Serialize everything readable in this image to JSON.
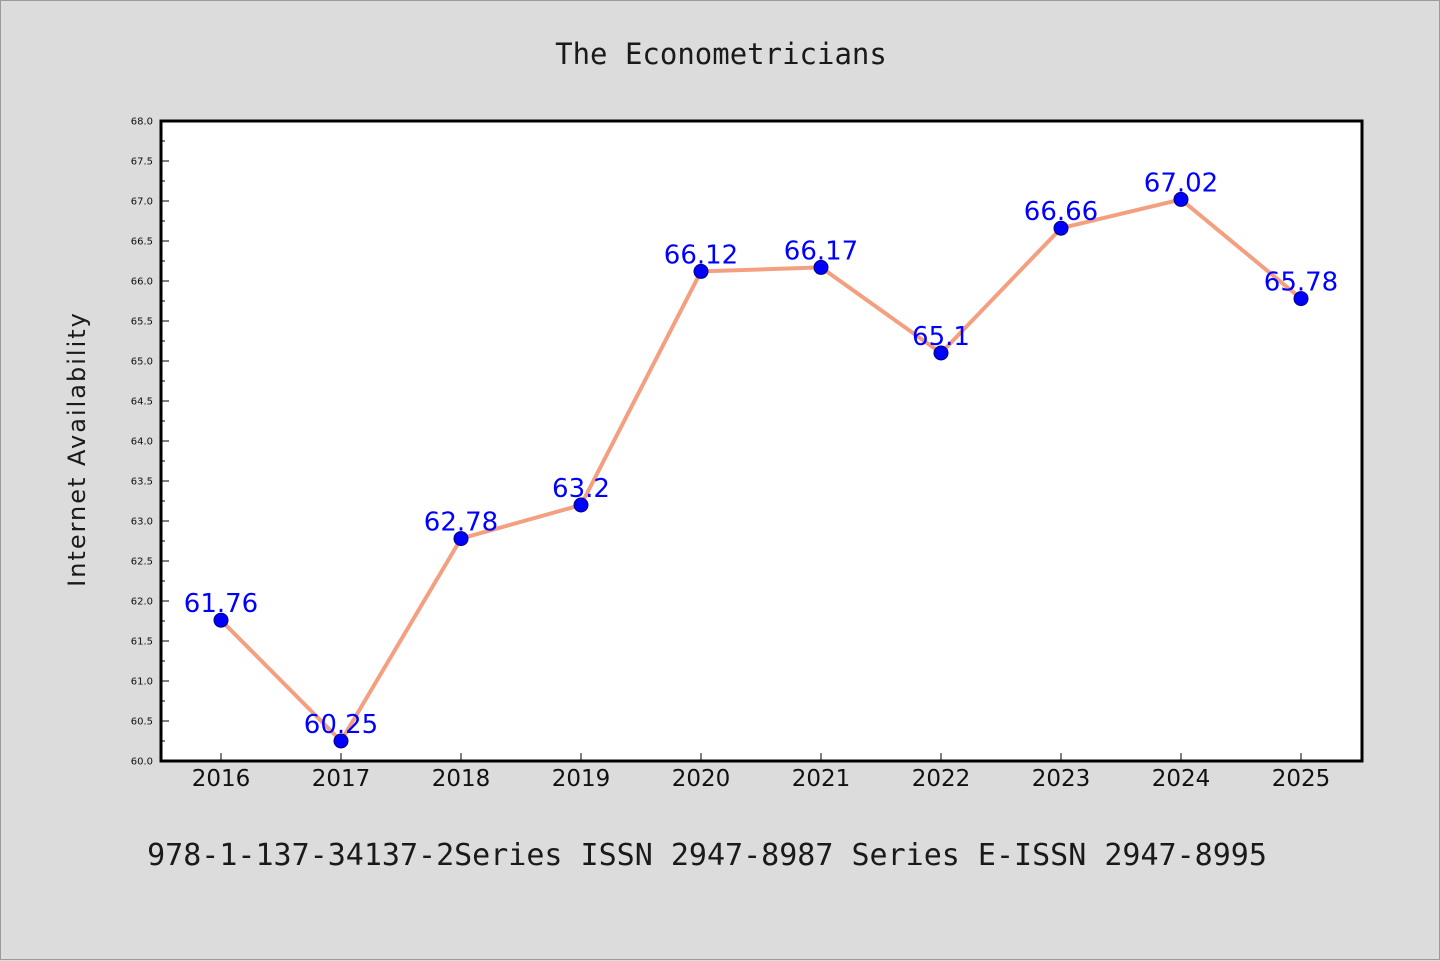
{
  "footer": "978-1-137-34137-2Series ISSN 2947-8987 Series E-ISSN 2947-8995",
  "chart_data": {
    "type": "line",
    "title": "The Econometricians",
    "xlabel": "",
    "ylabel": "Internet Availability",
    "categories": [
      "2016",
      "2017",
      "2018",
      "2019",
      "2020",
      "2021",
      "2022",
      "2023",
      "2024",
      "2025"
    ],
    "series": [
      {
        "values": [
          61.76,
          60.25,
          62.78,
          63.2,
          66.12,
          66.17,
          65.1,
          66.66,
          67.02,
          65.78
        ],
        "data_labels": [
          "61.76",
          "60.25",
          "62.78",
          "63.2",
          "66.12",
          "66.17",
          "65.1",
          "66.66",
          "67.02",
          "65.78"
        ],
        "line_color": "#f4a080",
        "marker_color": "#0000ff"
      }
    ],
    "ylim": [
      60.0,
      68.0
    ],
    "yticks": [
      "60.0",
      "60.5",
      "61.0",
      "61.5",
      "62.0",
      "62.5",
      "63.0",
      "63.5",
      "64.0",
      "64.5",
      "65.0",
      "65.5",
      "66.0",
      "66.5",
      "67.0",
      "67.5",
      "68.0"
    ],
    "grid": false,
    "legend": "none"
  }
}
